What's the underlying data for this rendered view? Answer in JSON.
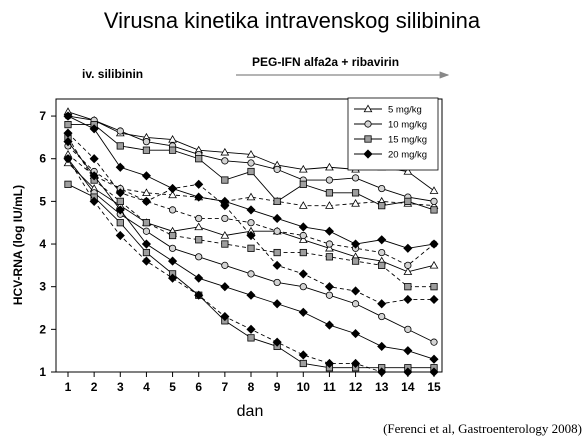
{
  "colors": {
    "5 mg/kg": "#ffffff",
    "10 mg/kg": "#d3d3d3",
    "15 mg/kg": "#9e9e9e",
    "20 mg/kg": "#000000"
  },
  "chart_data": {
    "type": "line",
    "title": "Virusna kinetika intravenskog silibinina",
    "xlabel": "dan",
    "ylabel": "HCV-RNA (log IU/mL)",
    "citation": "(Ferenci et al, Gastroenterology 2008)",
    "phase_labels": {
      "left": "iv. silibinin",
      "right": "PEG-IFN alfa2a + ribavirin"
    },
    "xlim": [
      1,
      15
    ],
    "ylim": [
      1,
      7.4
    ],
    "x_ticks": [
      1,
      2,
      3,
      4,
      5,
      6,
      7,
      8,
      9,
      10,
      11,
      12,
      13,
      14,
      15
    ],
    "y_ticks": [
      1,
      2,
      3,
      4,
      5,
      6,
      7
    ],
    "legend_position": "top-right",
    "grid": false,
    "x": [
      1,
      2,
      3,
      4,
      5,
      6,
      7,
      8,
      9,
      10,
      11,
      12,
      13,
      14,
      15
    ],
    "series": [
      {
        "name": "5 mg/kg",
        "marker": "triangle",
        "style": "solid",
        "values": [
          7.1,
          6.9,
          6.6,
          6.5,
          6.45,
          6.2,
          6.15,
          6.1,
          5.85,
          5.75,
          5.8,
          5.75,
          5.8,
          5.7,
          5.25
        ]
      },
      {
        "name": "5 mg/kg",
        "marker": "triangle",
        "style": "dashed",
        "values": [
          6.1,
          5.6,
          5.3,
          5.2,
          5.15,
          5.1,
          5.0,
          5.1,
          5.0,
          4.9,
          4.9,
          4.95,
          5.0,
          4.95,
          4.9
        ]
      },
      {
        "name": "5 mg/kg",
        "marker": "triangle",
        "style": "solid",
        "values": [
          5.9,
          5.3,
          4.9,
          4.5,
          4.3,
          4.4,
          4.2,
          4.3,
          4.3,
          4.1,
          3.9,
          3.7,
          3.6,
          3.35,
          3.5
        ]
      },
      {
        "name": "10 mg/kg",
        "marker": "circle",
        "style": "solid",
        "values": [
          7.0,
          6.9,
          6.65,
          6.4,
          6.3,
          6.1,
          5.95,
          5.9,
          5.75,
          5.5,
          5.5,
          5.55,
          5.3,
          5.1,
          5.0
        ]
      },
      {
        "name": "10 mg/kg",
        "marker": "circle",
        "style": "dashed",
        "values": [
          6.3,
          5.7,
          5.3,
          5.0,
          4.8,
          4.6,
          4.6,
          4.5,
          4.3,
          4.2,
          4.0,
          3.9,
          3.8,
          3.5,
          4.0
        ]
      },
      {
        "name": "10 mg/kg",
        "marker": "circle",
        "style": "solid",
        "values": [
          6.0,
          5.2,
          4.7,
          4.3,
          3.9,
          3.7,
          3.5,
          3.3,
          3.1,
          3.0,
          2.8,
          2.6,
          2.3,
          2.0,
          1.7
        ]
      },
      {
        "name": "15 mg/kg",
        "marker": "square",
        "style": "solid",
        "values": [
          6.8,
          6.8,
          6.3,
          6.2,
          6.2,
          6.0,
          5.5,
          5.7,
          5.0,
          5.4,
          5.2,
          5.2,
          4.9,
          5.0,
          4.8
        ]
      },
      {
        "name": "15 mg/kg",
        "marker": "square",
        "style": "dashed",
        "values": [
          6.5,
          5.5,
          5.0,
          4.5,
          4.2,
          4.1,
          4.0,
          3.9,
          3.8,
          3.8,
          3.7,
          3.6,
          3.5,
          3.0,
          3.0
        ]
      },
      {
        "name": "15 mg/kg",
        "marker": "square",
        "style": "solid",
        "values": [
          5.4,
          5.1,
          4.5,
          3.8,
          3.3,
          2.8,
          2.2,
          1.8,
          1.6,
          1.2,
          1.1,
          1.1,
          1.1,
          1.1,
          1.1
        ]
      },
      {
        "name": "20 mg/kg",
        "marker": "diamond",
        "style": "solid",
        "values": [
          7.0,
          6.7,
          5.8,
          5.6,
          5.3,
          5.1,
          5.0,
          4.8,
          4.6,
          4.4,
          4.3,
          4.0,
          4.1,
          3.9,
          4.0
        ]
      },
      {
        "name": "20 mg/kg",
        "marker": "diamond",
        "style": "dashed",
        "values": [
          6.6,
          6.0,
          5.2,
          5.0,
          5.3,
          5.4,
          4.9,
          4.2,
          3.5,
          3.3,
          3.0,
          2.9,
          2.6,
          2.7,
          2.7
        ]
      },
      {
        "name": "20 mg/kg",
        "marker": "diamond",
        "style": "solid",
        "values": [
          6.4,
          5.6,
          4.8,
          4.0,
          3.6,
          3.2,
          3.0,
          2.8,
          2.6,
          2.4,
          2.1,
          1.9,
          1.6,
          1.5,
          1.3
        ]
      },
      {
        "name": "20 mg/kg",
        "marker": "diamond",
        "style": "dashed",
        "values": [
          6.0,
          5.0,
          4.2,
          3.6,
          3.2,
          2.8,
          2.3,
          2.0,
          1.7,
          1.4,
          1.2,
          1.2,
          1.0,
          1.0,
          1.0
        ]
      }
    ]
  }
}
